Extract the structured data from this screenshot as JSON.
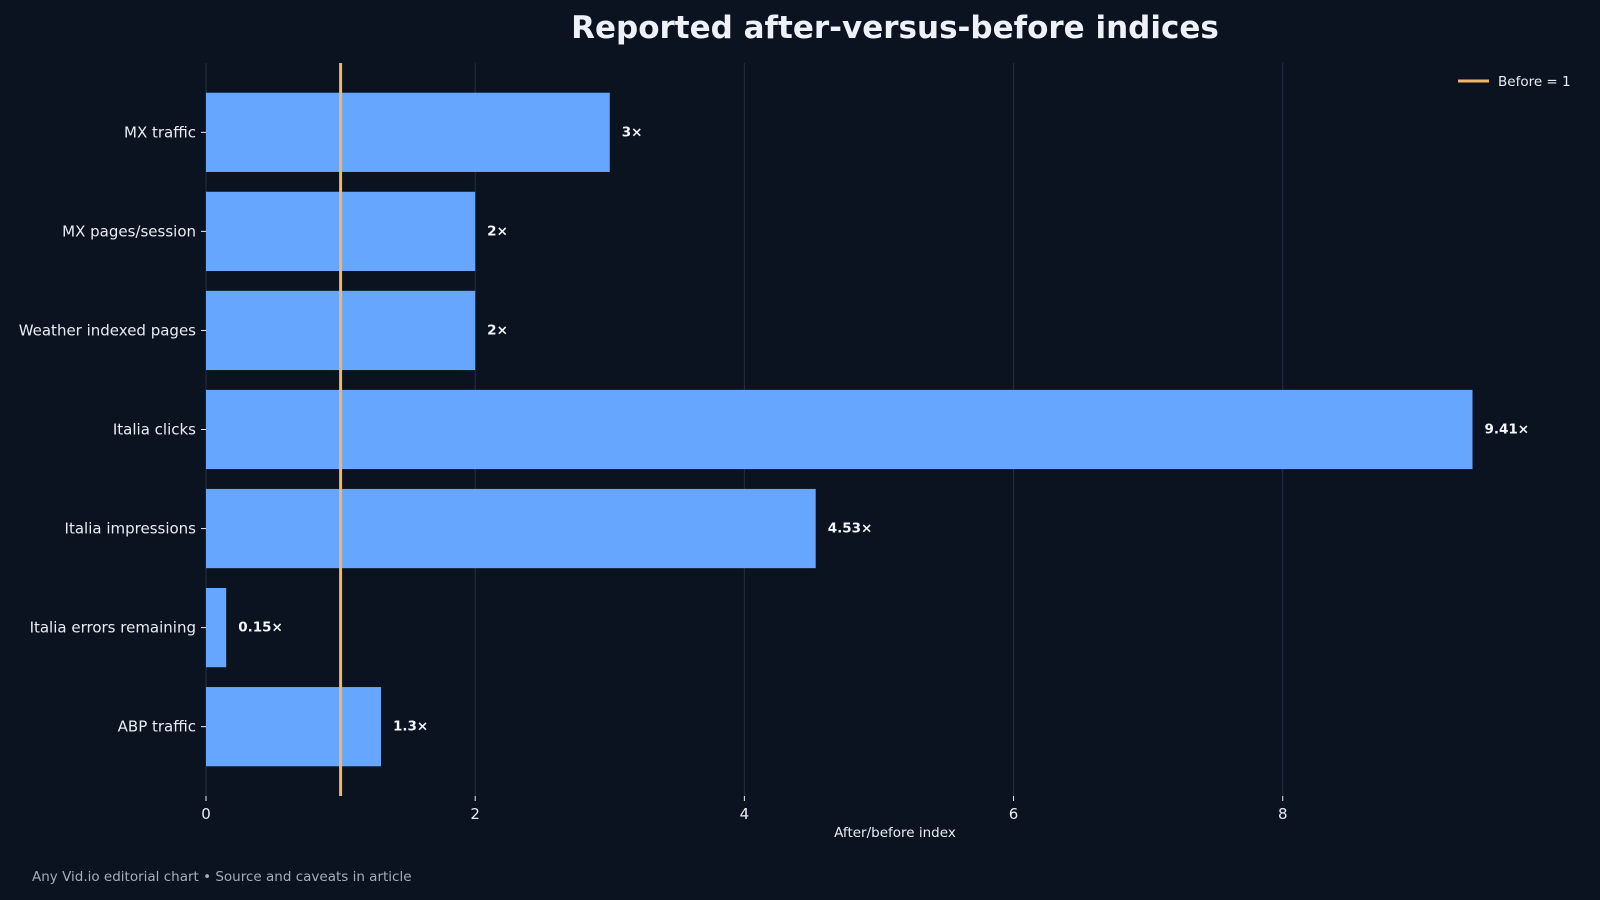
{
  "chart_data": {
    "type": "bar",
    "orientation": "horizontal",
    "title": "Reported after-versus-before indices",
    "xlabel": "After/before index",
    "ylabel": "",
    "categories": [
      "MX traffic",
      "MX pages/session",
      "Weather indexed pages",
      "Italia clicks",
      "Italia impressions",
      "Italia errors remaining",
      "ABP traffic"
    ],
    "values": [
      3,
      2,
      2,
      9.41,
      4.53,
      0.15,
      1.3
    ],
    "data_labels": [
      "3×",
      "2×",
      "2×",
      "9.41×",
      "4.53×",
      "0.15×",
      "1.3×"
    ],
    "xlim": [
      0,
      9.8
    ],
    "xticks": [
      0,
      2,
      4,
      6,
      8
    ],
    "xtick_labels": [
      "0",
      "2",
      "4",
      "6",
      "8"
    ],
    "reference_line": {
      "value": 1,
      "label": "Before = 1"
    },
    "grid": "vertical",
    "legend_placement": "top-right",
    "colors": {
      "background": "#0b1220",
      "bar": "#67a6fe",
      "reference_line": "#f2b765",
      "grid": "#253042",
      "text": "#e8ecf3"
    }
  },
  "footer": {
    "text": "Any Vid.io editorial chart • Source and caveats in article"
  }
}
